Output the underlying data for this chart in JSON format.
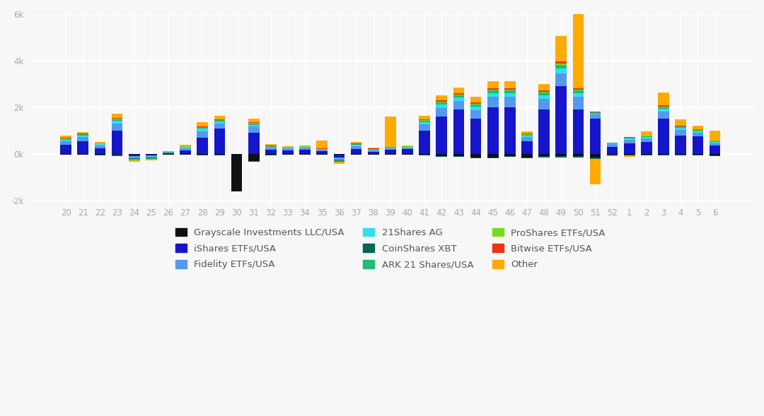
{
  "categories": [
    20,
    21,
    22,
    23,
    24,
    25,
    26,
    27,
    28,
    29,
    30,
    31,
    32,
    33,
    34,
    35,
    36,
    37,
    38,
    39,
    40,
    41,
    42,
    43,
    44,
    45,
    46,
    47,
    48,
    49,
    50,
    51,
    52,
    1,
    2,
    3,
    4,
    5,
    6
  ],
  "series": {
    "Grayscale Investments LLC/USA": [
      -20,
      -20,
      -30,
      -20,
      -30,
      -20,
      -20,
      -20,
      -30,
      -30,
      -1600,
      -300,
      -40,
      -30,
      -30,
      -30,
      -20,
      -30,
      -30,
      -20,
      -20,
      -30,
      -100,
      -100,
      -150,
      -150,
      -100,
      -150,
      -100,
      -100,
      -100,
      -150,
      -30,
      -30,
      -30,
      -30,
      -30,
      -40,
      -60
    ],
    "iShares ETFs/USA": [
      400,
      550,
      250,
      1000,
      -60,
      -50,
      30,
      150,
      700,
      1100,
      0,
      900,
      180,
      150,
      180,
      120,
      -120,
      200,
      100,
      180,
      200,
      1000,
      1600,
      1900,
      1500,
      2000,
      2000,
      550,
      1900,
      2900,
      1900,
      1500,
      300,
      450,
      500,
      1500,
      800,
      750,
      350
    ],
    "Fidelity ETFs/USA": [
      150,
      180,
      120,
      300,
      -70,
      -60,
      25,
      90,
      270,
      200,
      0,
      270,
      90,
      75,
      80,
      60,
      -80,
      120,
      60,
      60,
      60,
      280,
      380,
      380,
      380,
      450,
      450,
      170,
      450,
      550,
      550,
      180,
      110,
      150,
      160,
      310,
      230,
      160,
      110
    ],
    "21Shares AG": [
      60,
      70,
      40,
      110,
      -35,
      -25,
      15,
      45,
      110,
      80,
      0,
      80,
      35,
      30,
      30,
      22,
      -35,
      60,
      30,
      30,
      30,
      90,
      135,
      135,
      150,
      160,
      160,
      60,
      160,
      220,
      160,
      60,
      35,
      55,
      60,
      115,
      80,
      60,
      55
    ],
    "CoinShares XBT": [
      -25,
      -20,
      -40,
      -60,
      -35,
      -30,
      -12,
      -22,
      -22,
      -35,
      0,
      -35,
      -20,
      -15,
      -15,
      -15,
      -22,
      -15,
      -15,
      -15,
      -12,
      -22,
      -35,
      -35,
      -40,
      -40,
      -35,
      -30,
      -45,
      -40,
      -45,
      -60,
      -20,
      -22,
      -22,
      -35,
      -28,
      -28,
      -22
    ],
    "ARK 21 Shares/USA": [
      35,
      40,
      22,
      60,
      -28,
      -22,
      8,
      22,
      60,
      60,
      0,
      60,
      28,
      22,
      22,
      15,
      -28,
      35,
      22,
      22,
      22,
      60,
      90,
      90,
      90,
      110,
      110,
      45,
      110,
      160,
      110,
      35,
      22,
      35,
      40,
      80,
      55,
      40,
      35
    ],
    "ProShares ETFs/USA": [
      12,
      12,
      10,
      28,
      -10,
      -8,
      4,
      10,
      22,
      22,
      0,
      22,
      10,
      8,
      8,
      6,
      -14,
      14,
      8,
      8,
      8,
      22,
      35,
      35,
      40,
      45,
      45,
      15,
      45,
      60,
      45,
      15,
      8,
      10,
      14,
      28,
      22,
      15,
      14
    ],
    "Bitwise ETFs/USA": [
      28,
      22,
      14,
      45,
      -22,
      -15,
      7,
      14,
      28,
      28,
      0,
      28,
      14,
      10,
      10,
      8,
      -22,
      22,
      10,
      10,
      10,
      28,
      50,
      50,
      55,
      60,
      60,
      22,
      60,
      80,
      60,
      22,
      10,
      18,
      22,
      45,
      28,
      22,
      22
    ],
    "Other": [
      100,
      55,
      55,
      180,
      -55,
      -35,
      22,
      55,
      180,
      150,
      0,
      150,
      55,
      40,
      45,
      350,
      -75,
      70,
      40,
      1300,
      45,
      150,
      220,
      250,
      250,
      300,
      300,
      100,
      270,
      1100,
      3400,
      -1100,
      -50,
      -60,
      160,
      550,
      270,
      160,
      400
    ]
  },
  "colors": {
    "Grayscale Investments LLC/USA": "#111111",
    "iShares ETFs/USA": "#1515cc",
    "Fidelity ETFs/USA": "#5599ee",
    "21Shares AG": "#33ddee",
    "CoinShares XBT": "#006655",
    "ARK 21 Shares/USA": "#22bb77",
    "ProShares ETFs/USA": "#77dd22",
    "Bitwise ETFs/USA": "#ee3311",
    "Other": "#ffaa00"
  },
  "ylim": [
    -2200,
    6000
  ],
  "yticks": [
    -2000,
    0,
    2000,
    4000,
    6000
  ],
  "ytick_labels": [
    "-2k",
    "0k",
    "2k",
    "4k",
    "6k"
  ],
  "background_color": "#f7f7f7",
  "grid_color": "#ffffff",
  "bar_width": 0.65
}
